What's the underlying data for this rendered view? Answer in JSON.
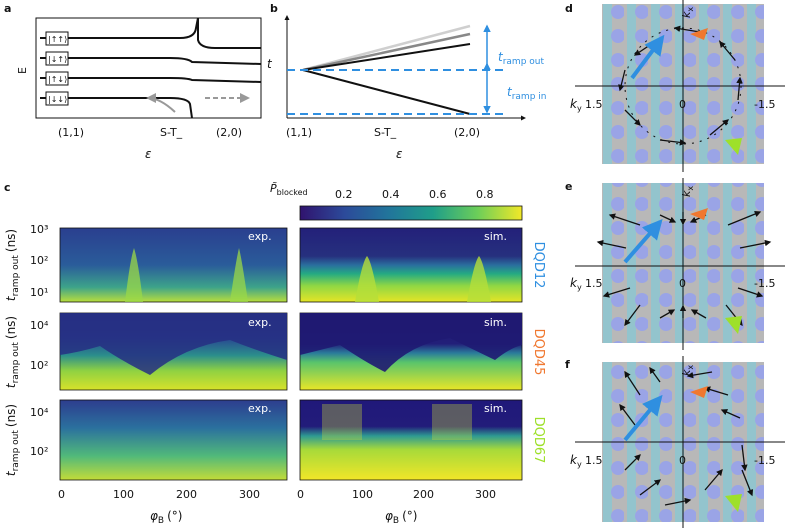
{
  "panels": {
    "a": {
      "label": "a",
      "ylabel": "E",
      "xlabel": "ε",
      "xticks": [
        "(1,1)",
        "S-T_",
        "(2,0)"
      ],
      "states": [
        "|↑↑⟩",
        "|↓↑⟩",
        "|↑↓⟩",
        "|↓↓⟩"
      ]
    },
    "b": {
      "label": "b",
      "ylabel": "t",
      "xlabel": "ε",
      "xticks": [
        "(1,1)",
        "S-T_",
        "(2,0)"
      ],
      "t_ramp_out": "t",
      "t_ramp_out_sub": "ramp out",
      "t_ramp_in": "t",
      "t_ramp_in_sub": "ramp in"
    },
    "c": {
      "label": "c",
      "colorbar_label": "P̃",
      "colorbar_label_sub": "blocked",
      "colorbar_ticks": [
        "0.2",
        "0.4",
        "0.6",
        "0.8"
      ],
      "ylabel": "t",
      "ylabel_sub": "ramp out",
      "ylabel_unit": "(ns)",
      "xlabel": "φ",
      "xlabel_sub": "B",
      "xlabel_unit": "(°)",
      "xticks": [
        "0",
        "100",
        "200",
        "300"
      ],
      "row1_yticks": [
        "10³",
        "10²",
        "10¹"
      ],
      "row2_yticks": [
        "10⁴",
        "10²"
      ],
      "row3_yticks": [
        "10⁴",
        "10²"
      ],
      "exp_tag": "exp.",
      "sim_tag": "sim.",
      "devices": [
        "DQD12",
        "DQD45",
        "DQD67"
      ],
      "device_colors": [
        "#2f8fe0",
        "#f07830",
        "#9ee02a"
      ]
    },
    "d": {
      "label": "d",
      "kx": "k",
      "kx_sub": "x",
      "ky": "k",
      "ky_sub": "y",
      "left_val": "1.5",
      "zero": "0",
      "right_val": "-1.5"
    },
    "e": {
      "label": "e",
      "kx": "k",
      "kx_sub": "x",
      "ky": "k",
      "ky_sub": "y",
      "left_val": "1.5",
      "zero": "0",
      "right_val": "-1.5"
    },
    "f": {
      "label": "f",
      "kx": "k",
      "kx_sub": "x",
      "ky": "k",
      "ky_sub": "y",
      "left_val": "1.5",
      "zero": "0",
      "right_val": "-1.5"
    }
  },
  "chart_data": [
    {
      "type": "line",
      "title": "a",
      "xlabel": "ε",
      "ylabel": "E",
      "categories": [
        "(1,1)",
        "S-T_",
        "(2,0)"
      ],
      "series": [
        {
          "name": "|↑↑⟩",
          "level": 4
        },
        {
          "name": "|↓↑⟩",
          "level": 3
        },
        {
          "name": "|↑↓⟩",
          "level": 2
        },
        {
          "name": "|↓↓⟩",
          "level": 1
        }
      ]
    },
    {
      "type": "line",
      "title": "b",
      "xlabel": "ε",
      "ylabel": "t",
      "categories": [
        "(1,1)",
        "S-T_",
        "(2,0)"
      ]
    },
    {
      "type": "heatmap",
      "title": "c",
      "xlabel": "φ_B (°)",
      "ylabel": "t_ramp out (ns)",
      "xlim": [
        0,
        360
      ],
      "colorbar": [
        0.05,
        0.95
      ],
      "rows": [
        "DQD12",
        "DQD45",
        "DQD67"
      ],
      "columns": [
        "exp.",
        "sim."
      ]
    }
  ]
}
